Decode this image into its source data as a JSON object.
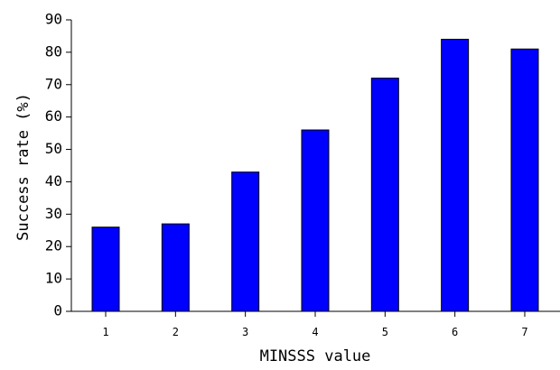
{
  "chart_data": {
    "type": "bar",
    "categories": [
      "1",
      "2",
      "3",
      "4",
      "5",
      "6",
      "7"
    ],
    "values": [
      26,
      27,
      43,
      56,
      72,
      84,
      81
    ],
    "title": "",
    "xlabel": "MINSSS value",
    "ylabel": "Success rate (%)",
    "ylim": [
      0,
      90
    ],
    "yticks": [
      0,
      10,
      20,
      30,
      40,
      50,
      60,
      70,
      80,
      90
    ],
    "grid": false,
    "legend": "none",
    "bar_color": "#0000ff",
    "edge_color": "#000000"
  }
}
